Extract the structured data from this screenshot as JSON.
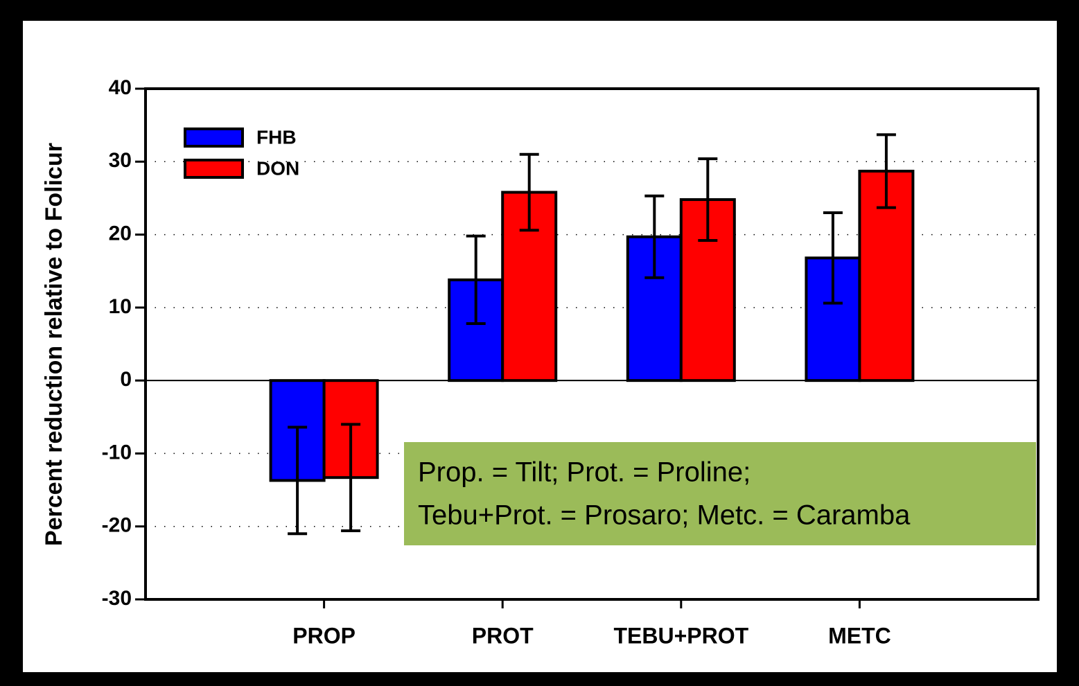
{
  "chart_data": {
    "type": "bar",
    "ylabel": "Percent reduction relative to Folicur",
    "categories": [
      "PROP",
      "PROT",
      "TEBU+PROT",
      "METC"
    ],
    "series": [
      {
        "name": "FHB",
        "color": "#0000ff",
        "values": [
          -13.7,
          13.8,
          19.7,
          16.8
        ],
        "errors": [
          7.3,
          6.0,
          5.6,
          6.2
        ]
      },
      {
        "name": "DON",
        "color": "#ff0000",
        "values": [
          -13.3,
          25.8,
          24.8,
          28.7
        ],
        "errors": [
          7.3,
          5.2,
          5.6,
          5.0
        ]
      }
    ],
    "ylim": [
      -30,
      40
    ],
    "yticks": [
      -30,
      -20,
      -10,
      0,
      10,
      20,
      30,
      40
    ],
    "grid": true,
    "legend": "upper left",
    "annotation": [
      "Prop. = Tilt; Prot. = Proline;",
      "Tebu+Prot. = Prosaro; Metc. = Caramba"
    ]
  }
}
